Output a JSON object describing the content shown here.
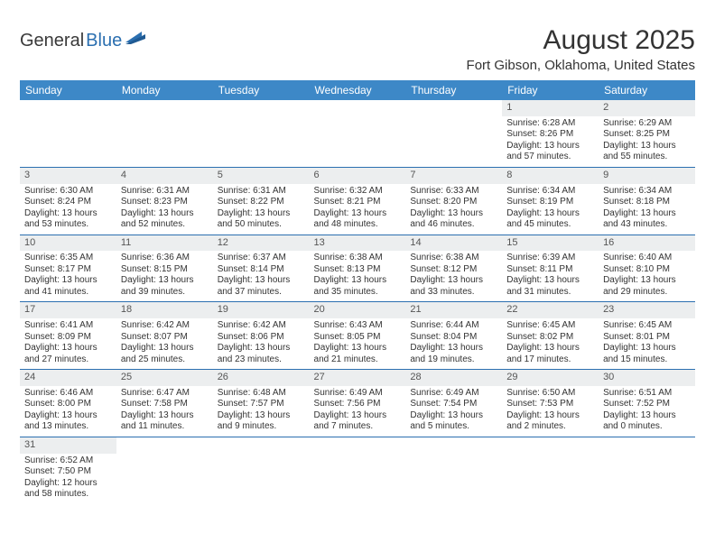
{
  "logo": {
    "part1": "General",
    "part2": "Blue"
  },
  "title": "August 2025",
  "location": "Fort Gibson, Oklahoma, United States",
  "colors": {
    "header_bg": "#3d88c7",
    "header_text": "#ffffff",
    "daynum_bg": "#eceeef",
    "row_border": "#2b6fb0",
    "logo_accent": "#2b6fb0",
    "text": "#333333"
  },
  "day_headers": [
    "Sunday",
    "Monday",
    "Tuesday",
    "Wednesday",
    "Thursday",
    "Friday",
    "Saturday"
  ],
  "weeks": [
    [
      null,
      null,
      null,
      null,
      null,
      {
        "n": "1",
        "sr": "Sunrise: 6:28 AM",
        "ss": "Sunset: 8:26 PM",
        "d1": "Daylight: 13 hours",
        "d2": "and 57 minutes."
      },
      {
        "n": "2",
        "sr": "Sunrise: 6:29 AM",
        "ss": "Sunset: 8:25 PM",
        "d1": "Daylight: 13 hours",
        "d2": "and 55 minutes."
      }
    ],
    [
      {
        "n": "3",
        "sr": "Sunrise: 6:30 AM",
        "ss": "Sunset: 8:24 PM",
        "d1": "Daylight: 13 hours",
        "d2": "and 53 minutes."
      },
      {
        "n": "4",
        "sr": "Sunrise: 6:31 AM",
        "ss": "Sunset: 8:23 PM",
        "d1": "Daylight: 13 hours",
        "d2": "and 52 minutes."
      },
      {
        "n": "5",
        "sr": "Sunrise: 6:31 AM",
        "ss": "Sunset: 8:22 PM",
        "d1": "Daylight: 13 hours",
        "d2": "and 50 minutes."
      },
      {
        "n": "6",
        "sr": "Sunrise: 6:32 AM",
        "ss": "Sunset: 8:21 PM",
        "d1": "Daylight: 13 hours",
        "d2": "and 48 minutes."
      },
      {
        "n": "7",
        "sr": "Sunrise: 6:33 AM",
        "ss": "Sunset: 8:20 PM",
        "d1": "Daylight: 13 hours",
        "d2": "and 46 minutes."
      },
      {
        "n": "8",
        "sr": "Sunrise: 6:34 AM",
        "ss": "Sunset: 8:19 PM",
        "d1": "Daylight: 13 hours",
        "d2": "and 45 minutes."
      },
      {
        "n": "9",
        "sr": "Sunrise: 6:34 AM",
        "ss": "Sunset: 8:18 PM",
        "d1": "Daylight: 13 hours",
        "d2": "and 43 minutes."
      }
    ],
    [
      {
        "n": "10",
        "sr": "Sunrise: 6:35 AM",
        "ss": "Sunset: 8:17 PM",
        "d1": "Daylight: 13 hours",
        "d2": "and 41 minutes."
      },
      {
        "n": "11",
        "sr": "Sunrise: 6:36 AM",
        "ss": "Sunset: 8:15 PM",
        "d1": "Daylight: 13 hours",
        "d2": "and 39 minutes."
      },
      {
        "n": "12",
        "sr": "Sunrise: 6:37 AM",
        "ss": "Sunset: 8:14 PM",
        "d1": "Daylight: 13 hours",
        "d2": "and 37 minutes."
      },
      {
        "n": "13",
        "sr": "Sunrise: 6:38 AM",
        "ss": "Sunset: 8:13 PM",
        "d1": "Daylight: 13 hours",
        "d2": "and 35 minutes."
      },
      {
        "n": "14",
        "sr": "Sunrise: 6:38 AM",
        "ss": "Sunset: 8:12 PM",
        "d1": "Daylight: 13 hours",
        "d2": "and 33 minutes."
      },
      {
        "n": "15",
        "sr": "Sunrise: 6:39 AM",
        "ss": "Sunset: 8:11 PM",
        "d1": "Daylight: 13 hours",
        "d2": "and 31 minutes."
      },
      {
        "n": "16",
        "sr": "Sunrise: 6:40 AM",
        "ss": "Sunset: 8:10 PM",
        "d1": "Daylight: 13 hours",
        "d2": "and 29 minutes."
      }
    ],
    [
      {
        "n": "17",
        "sr": "Sunrise: 6:41 AM",
        "ss": "Sunset: 8:09 PM",
        "d1": "Daylight: 13 hours",
        "d2": "and 27 minutes."
      },
      {
        "n": "18",
        "sr": "Sunrise: 6:42 AM",
        "ss": "Sunset: 8:07 PM",
        "d1": "Daylight: 13 hours",
        "d2": "and 25 minutes."
      },
      {
        "n": "19",
        "sr": "Sunrise: 6:42 AM",
        "ss": "Sunset: 8:06 PM",
        "d1": "Daylight: 13 hours",
        "d2": "and 23 minutes."
      },
      {
        "n": "20",
        "sr": "Sunrise: 6:43 AM",
        "ss": "Sunset: 8:05 PM",
        "d1": "Daylight: 13 hours",
        "d2": "and 21 minutes."
      },
      {
        "n": "21",
        "sr": "Sunrise: 6:44 AM",
        "ss": "Sunset: 8:04 PM",
        "d1": "Daylight: 13 hours",
        "d2": "and 19 minutes."
      },
      {
        "n": "22",
        "sr": "Sunrise: 6:45 AM",
        "ss": "Sunset: 8:02 PM",
        "d1": "Daylight: 13 hours",
        "d2": "and 17 minutes."
      },
      {
        "n": "23",
        "sr": "Sunrise: 6:45 AM",
        "ss": "Sunset: 8:01 PM",
        "d1": "Daylight: 13 hours",
        "d2": "and 15 minutes."
      }
    ],
    [
      {
        "n": "24",
        "sr": "Sunrise: 6:46 AM",
        "ss": "Sunset: 8:00 PM",
        "d1": "Daylight: 13 hours",
        "d2": "and 13 minutes."
      },
      {
        "n": "25",
        "sr": "Sunrise: 6:47 AM",
        "ss": "Sunset: 7:58 PM",
        "d1": "Daylight: 13 hours",
        "d2": "and 11 minutes."
      },
      {
        "n": "26",
        "sr": "Sunrise: 6:48 AM",
        "ss": "Sunset: 7:57 PM",
        "d1": "Daylight: 13 hours",
        "d2": "and 9 minutes."
      },
      {
        "n": "27",
        "sr": "Sunrise: 6:49 AM",
        "ss": "Sunset: 7:56 PM",
        "d1": "Daylight: 13 hours",
        "d2": "and 7 minutes."
      },
      {
        "n": "28",
        "sr": "Sunrise: 6:49 AM",
        "ss": "Sunset: 7:54 PM",
        "d1": "Daylight: 13 hours",
        "d2": "and 5 minutes."
      },
      {
        "n": "29",
        "sr": "Sunrise: 6:50 AM",
        "ss": "Sunset: 7:53 PM",
        "d1": "Daylight: 13 hours",
        "d2": "and 2 minutes."
      },
      {
        "n": "30",
        "sr": "Sunrise: 6:51 AM",
        "ss": "Sunset: 7:52 PM",
        "d1": "Daylight: 13 hours",
        "d2": "and 0 minutes."
      }
    ],
    [
      {
        "n": "31",
        "sr": "Sunrise: 6:52 AM",
        "ss": "Sunset: 7:50 PM",
        "d1": "Daylight: 12 hours",
        "d2": "and 58 minutes."
      },
      null,
      null,
      null,
      null,
      null,
      null
    ]
  ]
}
